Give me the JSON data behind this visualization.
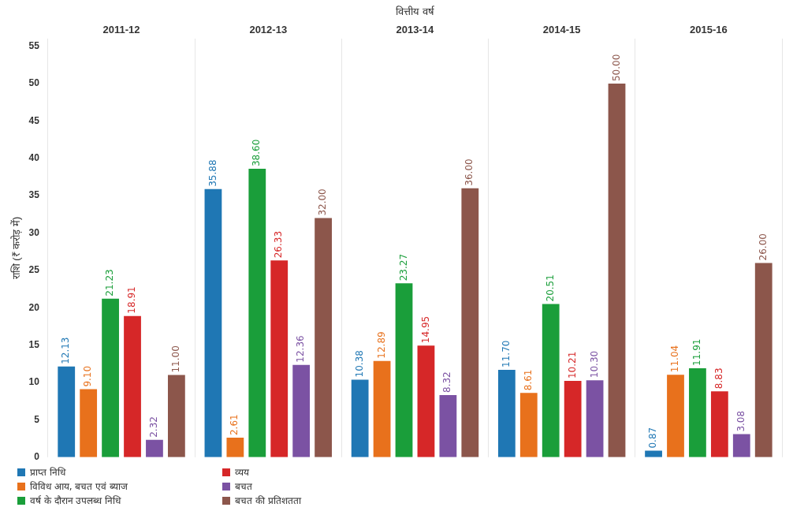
{
  "chart_data": {
    "type": "bar",
    "xlabel": "वित्तीय वर्ष",
    "ylabel": "राशि (₹ करोड़ में)",
    "categories": [
      "2011-12",
      "2012-13",
      "2013-14",
      "2014-15",
      "2015-16"
    ],
    "series": [
      {
        "name": "प्राप्त निधि",
        "color": "#1f77b4",
        "values": [
          12.13,
          35.88,
          10.38,
          11.7,
          0.87
        ],
        "value_labels": [
          "12.13",
          "35.88",
          "10.38",
          "11.70",
          "0.87"
        ]
      },
      {
        "name": "विविध आय, बचत एवं ब्याज",
        "color": "#e8711c",
        "values": [
          9.1,
          2.61,
          12.89,
          8.61,
          11.04
        ],
        "value_labels": [
          "9.10",
          "2.61",
          "12.89",
          "8.61",
          "11.04"
        ]
      },
      {
        "name": "वर्ष के दौरान उपलब्ध निधि",
        "color": "#1a9e3a",
        "values": [
          21.23,
          38.6,
          23.27,
          20.51,
          11.91
        ],
        "value_labels": [
          "21.23",
          "38.60",
          "23.27",
          "20.51",
          "11.91"
        ]
      },
      {
        "name": "व्यय",
        "color": "#d62728",
        "values": [
          18.91,
          26.33,
          14.95,
          10.21,
          8.83
        ],
        "value_labels": [
          "18.91",
          "26.33",
          "14.95",
          "10.21",
          "8.83"
        ]
      },
      {
        "name": "बचत",
        "color": "#7b52a3",
        "values": [
          2.32,
          12.36,
          8.32,
          10.3,
          3.08
        ],
        "value_labels": [
          "2.32",
          "12.36",
          "8.32",
          "10.30",
          "3.08"
        ]
      },
      {
        "name": "बचत की प्रतिशतता",
        "color": "#8c564b",
        "values": [
          11.0,
          32.0,
          36.0,
          50.0,
          26.0
        ],
        "value_labels": [
          "11.00",
          "32.00",
          "36.00",
          "50.00",
          "26.00"
        ]
      }
    ],
    "ylim": [
      0,
      56
    ],
    "yticks": [
      0,
      5,
      10,
      15,
      20,
      25,
      30,
      35,
      40,
      45,
      50,
      55
    ],
    "grid": "x",
    "legend": "bottom left"
  }
}
